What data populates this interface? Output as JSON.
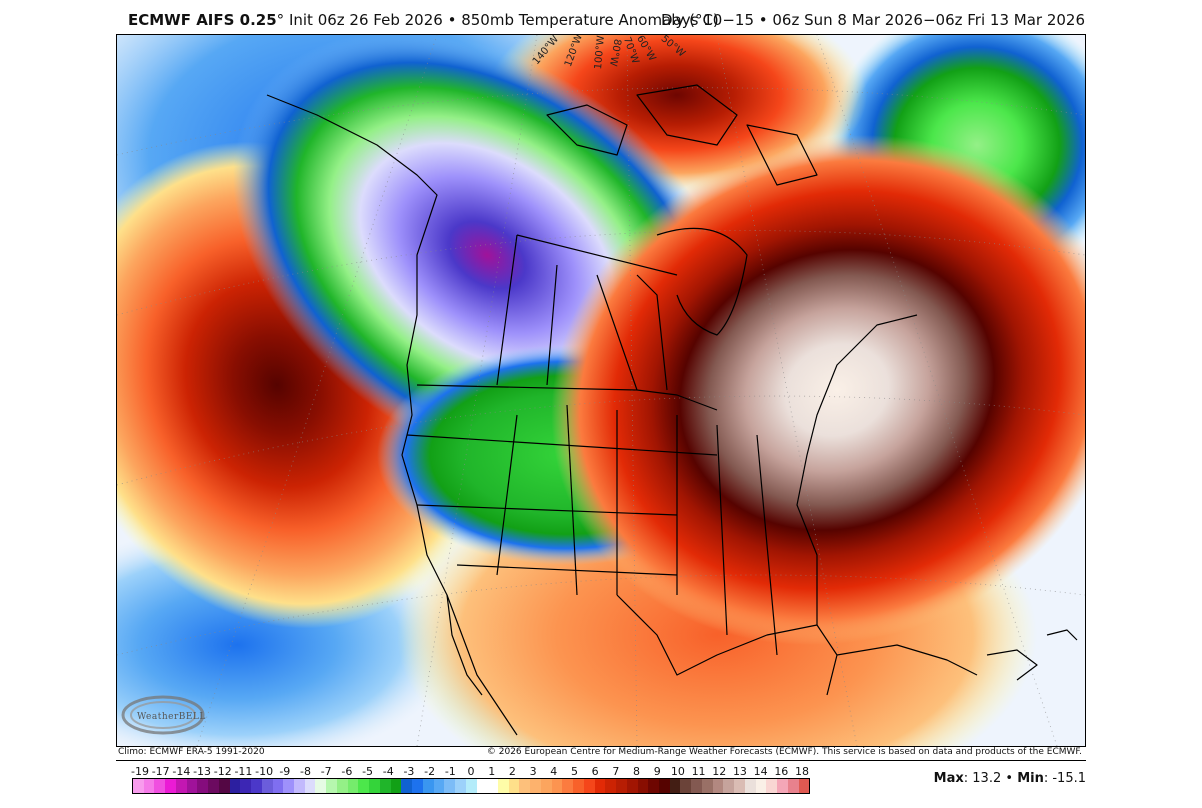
{
  "header": {
    "model_name": "ECMWF AIFS 0.25",
    "degree_symbol": "°",
    "init_text": "Init 06z 26 Feb 2026",
    "separator": "•",
    "product": "850mb Temperature Anomaly (°C)",
    "valid_period": "Days 10−15 • 06z Sun 8 Mar 2026−06z Fri 13 Mar 2026"
  },
  "map": {
    "region": "North America",
    "projection_labels": [
      "140°W",
      "120°W",
      "100°W",
      "80°W",
      "70°W",
      "60°W",
      "50°W"
    ],
    "features": [
      {
        "name": "strong-warm-anomaly-northeast-us",
        "approx_value": 13.2
      },
      {
        "name": "warm-anomaly-northeast-pacific",
        "approx_value": 9
      },
      {
        "name": "cold-anomaly-western-canada",
        "approx_value": -15.1
      },
      {
        "name": "cold-anomaly-north-atlantic",
        "approx_value": -7
      },
      {
        "name": "cold-anomaly-northern-plains",
        "approx_value": -5
      },
      {
        "name": "warm-anomaly-baffin-greenland",
        "approx_value": 8
      }
    ],
    "watermark": "WeatherBELL"
  },
  "footer": {
    "climo": "Climo: ECMWF ERA-5 1991-2020",
    "copyright": "© 2026 European Centre for Medium-Range Weather Forecasts (ECMWF). This service is based on data and products of the ECMWF."
  },
  "colorbar": {
    "labels": [
      "-19",
      "-17",
      "-14",
      "-13",
      "-12",
      "-11",
      "-10",
      "-9",
      "-8",
      "-7",
      "-6",
      "-5",
      "-4",
      "-3",
      "-2",
      "-1",
      "0",
      "1",
      "2",
      "3",
      "4",
      "5",
      "6",
      "7",
      "8",
      "9",
      "10",
      "11",
      "12",
      "13",
      "14",
      "16",
      "18"
    ],
    "colors": [
      "#f89ced",
      "#f57ae8",
      "#f04fe0",
      "#eb1bd5",
      "#c317b2",
      "#a0129a",
      "#850c7d",
      "#6c0a60",
      "#540744",
      "#2c1fa0",
      "#3c26b4",
      "#4b38c9",
      "#6b5ddb",
      "#7f6ff0",
      "#9e91fb",
      "#c2b9fd",
      "#dcdcfc",
      "#e6fbe4",
      "#b6f7ae",
      "#94f087",
      "#75ec6c",
      "#4ce74b",
      "#34d43a",
      "#20b52a",
      "#12a016",
      "#1062d1",
      "#1d72ee",
      "#3a96f0",
      "#57a8f4",
      "#7cbcf7",
      "#9cd1fa",
      "#b4ecfa",
      "#ffffff",
      "#ffffff",
      "#fefca8",
      "#fee08a",
      "#fdc07b",
      "#fdb26d",
      "#fca55e",
      "#fc9450",
      "#fb7b3f",
      "#f8612a",
      "#f5461a",
      "#e22a06",
      "#cc2303",
      "#b71d03",
      "#a11502",
      "#880e01",
      "#6e0601",
      "#560300",
      "#431e14",
      "#6b4339",
      "#835951",
      "#997066",
      "#b28880",
      "#c6a39c",
      "#dabcb4",
      "#ebe0db",
      "#faf0e7",
      "#f9d6d3",
      "#f4a6b7",
      "#e8818d",
      "#df5951"
    ],
    "max_label": "Max",
    "max_value": "13.2",
    "min_label": "Min",
    "min_value": "-15.1"
  }
}
